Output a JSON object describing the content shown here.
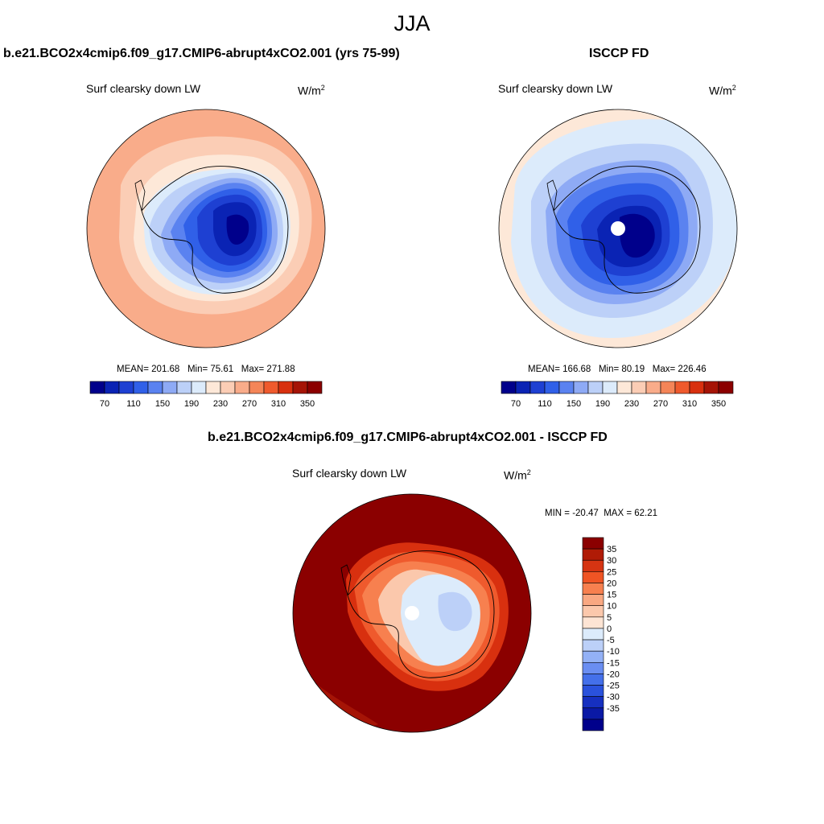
{
  "season": "JJA",
  "panels": [
    {
      "title": "b.e21.BCO2x4cmip6.f09_g17.CMIP6-abrupt4xCO2.001 (yrs 75-99)",
      "field": "Surf clearsky down LW",
      "units_base": "W/m",
      "units_exp": "2",
      "stats": {
        "mean_label": "MEAN=",
        "mean": "201.68",
        "min_label": "Min=",
        "min": "75.61",
        "max_label": "Max=",
        "max": "271.88"
      },
      "colorbar": {
        "colors": [
          "#00008b",
          "#0a23b4",
          "#1e40d2",
          "#3060e8",
          "#5a82f0",
          "#8eaaf5",
          "#bcd0f8",
          "#dcebfb",
          "#fde8d8",
          "#fbcdb5",
          "#f9ac8a",
          "#f48558",
          "#ef5a2d",
          "#d8300f",
          "#a51406",
          "#8b0000"
        ],
        "tick_labels": [
          "70",
          "110",
          "150",
          "190",
          "230",
          "270",
          "310",
          "350"
        ]
      }
    },
    {
      "title": "ISCCP FD",
      "field": "Surf clearsky down LW",
      "units_base": "W/m",
      "units_exp": "2",
      "stats": {
        "mean_label": "MEAN=",
        "mean": "166.68",
        "min_label": "Min=",
        "min": "80.19",
        "max_label": "Max=",
        "max": "226.46"
      },
      "colorbar": {
        "colors": [
          "#00008b",
          "#0a23b4",
          "#1e40d2",
          "#3060e8",
          "#5a82f0",
          "#8eaaf5",
          "#bcd0f8",
          "#dcebfb",
          "#fde8d8",
          "#fbcdb5",
          "#f9ac8a",
          "#f48558",
          "#ef5a2d",
          "#d8300f",
          "#a51406",
          "#8b0000"
        ],
        "tick_labels": [
          "70",
          "110",
          "150",
          "190",
          "230",
          "270",
          "310",
          "350"
        ]
      }
    },
    {
      "title": "b.e21.BCO2x4cmip6.f09_g17.CMIP6-abrupt4xCO2.001 - ISCCP FD",
      "field": "Surf clearsky down LW",
      "units_base": "W/m",
      "units_exp": "2",
      "minmax": {
        "min_label": "MIN =",
        "min": "-20.47",
        "max_label": "MAX =",
        "max": "62.21"
      },
      "colorbar": {
        "colors": [
          "#8b0000",
          "#b01b06",
          "#d63412",
          "#ef5424",
          "#f7804f",
          "#f9a882",
          "#fbc8ac",
          "#fde4d4",
          "#dcebfb",
          "#bcd0f8",
          "#93b1f6",
          "#6a8ef2",
          "#4470ea",
          "#2a52dc",
          "#1630c0",
          "#0a19a5",
          "#00008b"
        ],
        "tick_labels": [
          "35",
          "30",
          "25",
          "20",
          "15",
          "10",
          "5",
          "0",
          "-5",
          "-10",
          "-15",
          "-20",
          "-25",
          "-30",
          "-35"
        ]
      }
    }
  ]
}
